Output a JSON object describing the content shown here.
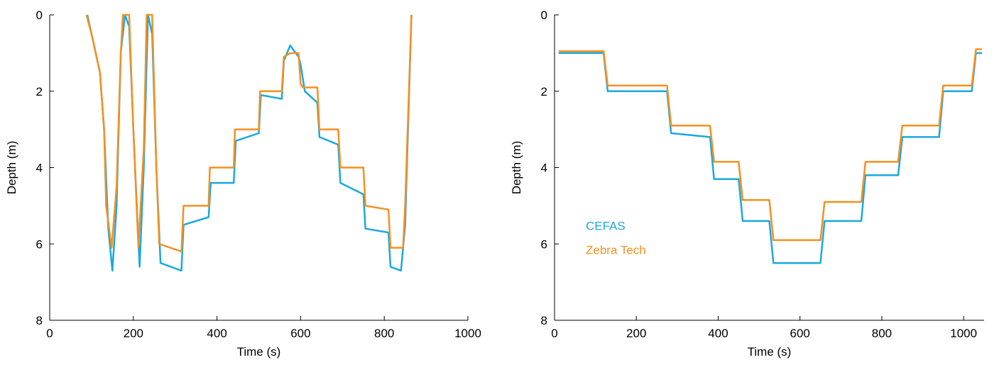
{
  "chart_data": [
    {
      "type": "line",
      "x_label": "Time (s)",
      "y_label": "Depth (m)",
      "xlim": [
        0,
        1000
      ],
      "xticks": [
        0,
        200,
        400,
        600,
        800,
        1000
      ],
      "ylim": [
        8,
        0
      ],
      "yticks": [
        0,
        2,
        4,
        6,
        8
      ],
      "series": [
        {
          "color": "#1ba8e0",
          "x": [
            90,
            100,
            120,
            130,
            140,
            150,
            160,
            170,
            180,
            190,
            200,
            215,
            225,
            235,
            245,
            255,
            265,
            315,
            320,
            380,
            385,
            440,
            445,
            500,
            505,
            555,
            560,
            575,
            595,
            600,
            610,
            640,
            645,
            690,
            695,
            750,
            755,
            810,
            815,
            840,
            850,
            865
          ],
          "values": [
            0,
            0.5,
            1.5,
            3,
            5.6,
            6.7,
            5,
            1,
            0,
            0.3,
            3,
            6.6,
            4,
            0,
            0.5,
            4,
            6.5,
            6.7,
            5.5,
            5.3,
            4.4,
            4.4,
            3.3,
            3.1,
            2.1,
            2.2,
            1.2,
            0.8,
            1.1,
            1.3,
            2,
            2.3,
            3.2,
            3.4,
            4.4,
            4.7,
            5.6,
            5.7,
            6.6,
            6.7,
            5.5,
            0
          ]
        },
        {
          "color": "#f5901e",
          "x": [
            88,
            100,
            120,
            130,
            135,
            148,
            160,
            170,
            175,
            190,
            200,
            212,
            225,
            232,
            245,
            255,
            262,
            315,
            320,
            380,
            383,
            440,
            443,
            500,
            503,
            555,
            560,
            575,
            595,
            600,
            605,
            640,
            645,
            690,
            695,
            750,
            755,
            810,
            815,
            845,
            850,
            865
          ],
          "values": [
            0,
            0.5,
            1.5,
            3,
            5,
            6.1,
            4.5,
            1,
            0,
            0,
            3,
            6.1,
            3.5,
            0,
            0,
            4,
            6,
            6.2,
            5,
            5,
            4,
            4,
            3,
            3,
            2,
            2,
            1.1,
            1,
            1,
            1.8,
            1.9,
            1.9,
            3,
            3,
            4,
            4,
            5,
            5.1,
            6.1,
            6.1,
            5,
            0
          ]
        }
      ]
    },
    {
      "type": "line",
      "x_label": "Time (s)",
      "y_label": "Depth (m)",
      "xlim": [
        0,
        1050
      ],
      "xticks": [
        0,
        200,
        400,
        600,
        800,
        1000
      ],
      "ylim": [
        8,
        0
      ],
      "yticks": [
        0,
        2,
        4,
        6,
        8
      ],
      "legend_loc": "center-left",
      "series": [
        {
          "name": "CEFAS",
          "color": "#1ba8e0",
          "x": [
            10,
            120,
            130,
            275,
            285,
            380,
            390,
            450,
            460,
            525,
            535,
            650,
            660,
            750,
            760,
            840,
            850,
            940,
            950,
            1020,
            1030,
            1045
          ],
          "values": [
            1,
            1,
            2,
            2,
            3.1,
            3.2,
            4.3,
            4.3,
            5.4,
            5.4,
            6.5,
            6.5,
            5.4,
            5.4,
            4.2,
            4.2,
            3.2,
            3.2,
            2,
            2,
            1,
            1
          ]
        },
        {
          "name": "Zebra Tech",
          "color": "#f5901e",
          "x": [
            10,
            120,
            130,
            275,
            285,
            380,
            390,
            450,
            460,
            525,
            535,
            650,
            660,
            750,
            760,
            840,
            850,
            940,
            950,
            1020,
            1030,
            1045
          ],
          "values": [
            0.95,
            0.95,
            1.85,
            1.85,
            2.9,
            2.9,
            3.85,
            3.85,
            4.85,
            4.85,
            5.9,
            5.9,
            4.9,
            4.9,
            3.85,
            3.85,
            2.9,
            2.9,
            1.85,
            1.85,
            0.9,
            0.9
          ]
        }
      ]
    }
  ]
}
